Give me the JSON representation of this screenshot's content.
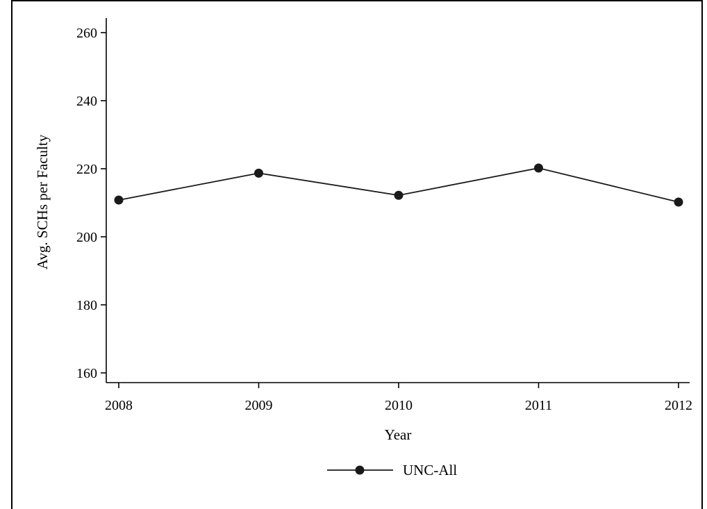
{
  "chart_data": {
    "type": "line",
    "title": "",
    "xlabel": "Year",
    "ylabel": "Avg. SCHs per Faculty",
    "x": [
      2008,
      2009,
      2010,
      2011,
      2012
    ],
    "series": [
      {
        "name": "UNC-All",
        "values": [
          210.8,
          218.7,
          212.2,
          220.2,
          210.2
        ],
        "color": "#1a1a1a"
      }
    ],
    "xticks": [
      "2008",
      "2009",
      "2010",
      "2011",
      "2012"
    ],
    "yticks": [
      160,
      180,
      200,
      220,
      240,
      260
    ],
    "xlim": [
      2008,
      2012
    ],
    "ylim": [
      160,
      260
    ],
    "grid": false,
    "legend_position": "bottom-center"
  }
}
